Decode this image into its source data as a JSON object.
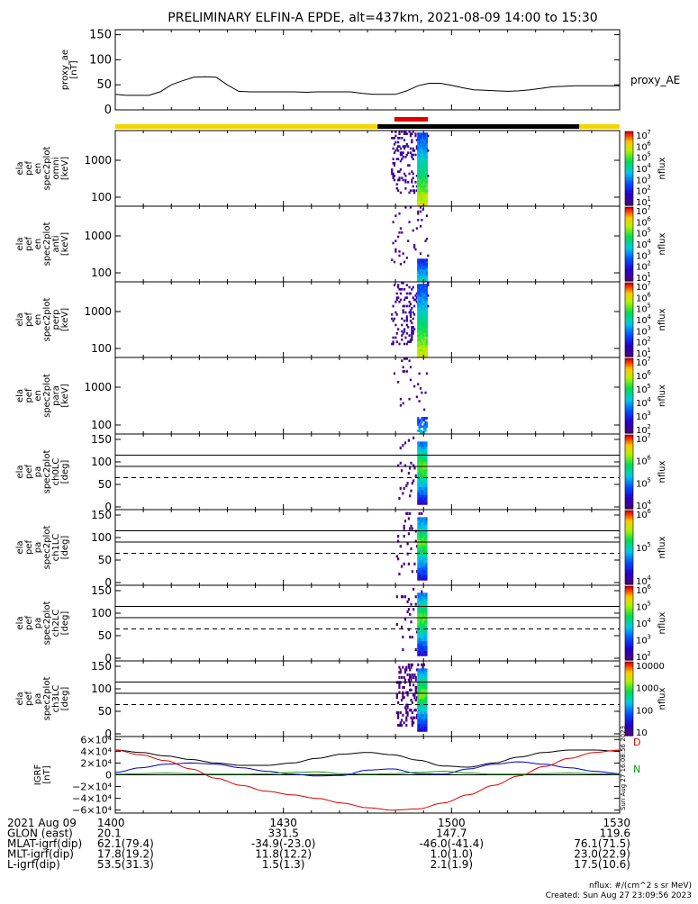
{
  "title": "PRELIMINARY ELFIN-A EPDE, alt=437km, 2021-08-09 14:00 to 15:30",
  "colors": {
    "ae_line": "#000000",
    "sci_bar": "#e00000",
    "zone_bar_yellow": "#f5d400",
    "zone_bar_black": "#000000",
    "igrf_x": "#000000",
    "igrf_y": "#0000c8",
    "igrf_z": "#dd0000",
    "igrf_n": "#00a000"
  },
  "chart_data": [
    {
      "type": "line",
      "id": "proxy_ae",
      "ylabel": [
        "proxy_ae",
        "[nT]"
      ],
      "series": [
        {
          "name": "proxy_AE"
        }
      ],
      "ylim": [
        0,
        160
      ],
      "yticks": [
        "0",
        "50",
        "100",
        "150"
      ],
      "ytick_values": [
        0,
        50,
        100,
        150
      ],
      "x": [
        14.0,
        14.033,
        14.067,
        14.1,
        14.133,
        14.167,
        14.2,
        14.233,
        14.267,
        14.3,
        14.333,
        14.367,
        14.4,
        14.433,
        14.467,
        14.5,
        14.533,
        14.567,
        14.6,
        14.633,
        14.667,
        14.7,
        14.733,
        14.767,
        14.8,
        14.833,
        14.867,
        14.9,
        14.933,
        14.967,
        15.0,
        15.033,
        15.067,
        15.1,
        15.133,
        15.167,
        15.2,
        15.233,
        15.267,
        15.3,
        15.333,
        15.367,
        15.4,
        15.433,
        15.467,
        15.5
      ],
      "values": [
        31,
        29,
        29,
        29,
        36,
        50,
        58,
        65,
        66,
        65,
        50,
        37,
        36,
        36,
        36,
        36,
        36,
        35,
        36,
        36,
        36,
        36,
        33,
        31,
        31,
        31,
        38,
        48,
        53,
        53,
        49,
        44,
        40,
        39,
        38,
        37,
        38,
        40,
        43,
        46,
        47,
        48,
        48,
        48,
        48,
        48
      ]
    },
    {
      "type": "heatmap",
      "id": "spec_omni",
      "ylabel": [
        "ela",
        "pef",
        "en",
        "spec2plot",
        "omni",
        "[keV]"
      ],
      "yticks": [
        "100",
        "1000"
      ],
      "colorbar_label": "nflux",
      "colorbar_ticks": [
        "10",
        "10",
        "10",
        "10",
        "10",
        "10",
        "10"
      ],
      "colorbar_exponents": [
        "1",
        "2",
        "3",
        "4",
        "5",
        "6",
        "7"
      ]
    },
    {
      "type": "heatmap",
      "id": "spec_anti",
      "ylabel": [
        "ela",
        "pef",
        "en",
        "spec2plot",
        "anti",
        "[keV]"
      ],
      "yticks": [
        "100",
        "1000"
      ],
      "colorbar_label": "nflux",
      "colorbar_ticks": [
        "10",
        "10",
        "10",
        "10",
        "10",
        "10",
        "10"
      ],
      "colorbar_exponents": [
        "1",
        "2",
        "3",
        "4",
        "5",
        "6",
        "7"
      ]
    },
    {
      "type": "heatmap",
      "id": "spec_perp",
      "ylabel": [
        "ela",
        "pef",
        "en",
        "spec2plot",
        "perp",
        "[keV]"
      ],
      "yticks": [
        "100",
        "1000"
      ],
      "colorbar_label": "nflux",
      "colorbar_ticks": [
        "10",
        "10",
        "10",
        "10",
        "10",
        "10",
        "10"
      ],
      "colorbar_exponents": [
        "1",
        "2",
        "3",
        "4",
        "5",
        "6",
        "7"
      ]
    },
    {
      "type": "heatmap",
      "id": "spec_para",
      "ylabel": [
        "ela",
        "pef",
        "en",
        "spec2plot",
        "para",
        "[keV]"
      ],
      "yticks": [
        "100",
        "1000"
      ],
      "colorbar_label": "nflux",
      "colorbar_ticks": [
        "10",
        "10",
        "10",
        "10",
        "10",
        "10"
      ],
      "colorbar_exponents": [
        "2",
        "3",
        "4",
        "5",
        "6",
        "7"
      ]
    },
    {
      "type": "heatmap",
      "id": "pa_ch0",
      "ylabel": [
        "ela",
        "pef",
        "pa",
        "spec2plot",
        "ch0LC",
        "[deg]"
      ],
      "yticks": [
        "0",
        "50",
        "100",
        "150"
      ],
      "colorbar_label": "nflux",
      "colorbar_ticks": [
        "10",
        "10",
        "10",
        "10"
      ],
      "colorbar_exponents": [
        "4",
        "5",
        "6",
        "7"
      ]
    },
    {
      "type": "heatmap",
      "id": "pa_ch1",
      "ylabel": [
        "ela",
        "pef",
        "pa",
        "spec2plot",
        "ch1LC",
        "[deg]"
      ],
      "yticks": [
        "0",
        "50",
        "100",
        "150"
      ],
      "colorbar_label": "nflux",
      "colorbar_ticks": [
        "10",
        "10",
        "10"
      ],
      "colorbar_exponents": [
        "4",
        "5",
        "6"
      ]
    },
    {
      "type": "heatmap",
      "id": "pa_ch2",
      "ylabel": [
        "ela",
        "pef",
        "pa",
        "spec2plot",
        "ch2LC",
        "[deg]"
      ],
      "yticks": [
        "0",
        "50",
        "100",
        "150"
      ],
      "colorbar_label": "nflux",
      "colorbar_ticks": [
        "10",
        "10",
        "10",
        "10",
        "10"
      ],
      "colorbar_exponents": [
        "2",
        "3",
        "4",
        "5",
        "6"
      ]
    },
    {
      "type": "heatmap",
      "id": "pa_ch3",
      "ylabel": [
        "ela",
        "pef",
        "pa",
        "spec2plot",
        "ch3LC",
        "[deg]"
      ],
      "yticks": [
        "0",
        "50",
        "100",
        "150"
      ],
      "colorbar_label": "nflux",
      "colorbar_ticks": [
        "10",
        "100",
        "1000",
        "10000"
      ]
    },
    {
      "type": "line",
      "id": "igrf",
      "ylabel": [
        "IGRF",
        "[nT]"
      ],
      "ylim": [
        -65000,
        65000
      ],
      "yticks": [
        "−6×10⁴",
        "−4×10⁴",
        "−2×10⁴",
        "0",
        "2×10⁴",
        "4×10⁴",
        "6×10⁴"
      ],
      "ytick_values": [
        -60000,
        -40000,
        -20000,
        0,
        20000,
        40000,
        60000
      ],
      "x": [
        14.0,
        14.075,
        14.15,
        14.225,
        14.3,
        14.375,
        14.45,
        14.525,
        14.6,
        14.675,
        14.75,
        14.825,
        14.9,
        14.975,
        15.05,
        15.125,
        15.2,
        15.275,
        15.35,
        15.425,
        15.5
      ],
      "series": [
        {
          "values": [
            42000,
            38000,
            32000,
            26000,
            20000,
            16000,
            16000,
            20000,
            28000,
            35000,
            38000,
            34000,
            25000,
            15000,
            13000,
            20000,
            30000,
            38000,
            42000,
            42000,
            40000
          ]
        },
        {
          "values": [
            4000,
            12000,
            18000,
            20000,
            18000,
            12000,
            6000,
            1000,
            -2000,
            -1000,
            8000,
            10000,
            2000,
            1000,
            10000,
            18000,
            22000,
            18000,
            12000,
            6000,
            2000
          ]
        },
        {
          "values": [
            42000,
            34000,
            24000,
            10000,
            -6000,
            -18000,
            -28000,
            -34000,
            -40000,
            -48000,
            -56000,
            -60000,
            -58000,
            -48000,
            -34000,
            -18000,
            -2000,
            14000,
            28000,
            38000,
            42000
          ]
        },
        {
          "values": [
            1000,
            2000,
            3000,
            2000,
            1000,
            1000,
            2000,
            4000,
            5000,
            2000,
            1000,
            2000,
            4000,
            6000,
            3000,
            1000,
            1000,
            2000,
            3000,
            2000,
            1000
          ]
        }
      ]
    }
  ],
  "zone_bar": {
    "segments": [
      {
        "from": 14.0,
        "to": 14.78,
        "color": "yellow"
      },
      {
        "from": 14.78,
        "to": 15.38,
        "color": "black"
      },
      {
        "from": 15.38,
        "to": 15.5,
        "color": "yellow"
      }
    ],
    "science_zone": {
      "from": 14.83,
      "to": 14.93
    }
  },
  "xaxis": {
    "ticks": [
      "1400",
      "1430",
      "1500",
      "1530"
    ],
    "tick_values": [
      14.0,
      14.5,
      15.0,
      15.5
    ]
  },
  "ephemeris": {
    "rows": [
      {
        "label": "2021 Aug 09",
        "values": [
          "1400",
          "1430",
          "1500",
          "1530"
        ]
      },
      {
        "label": "GLON (east)",
        "values": [
          "20.1",
          "331.5",
          "147.7",
          "119.6"
        ]
      },
      {
        "label": "MLAT-igrf(dip)",
        "values": [
          "62.1(79.4)",
          "-34.9(-23.0)",
          "-46.0(-41.4)",
          "76.1(71.5)"
        ]
      },
      {
        "label": "MLT-igrf(dip)",
        "values": [
          "17.8(19.2)",
          "11.8(12.2)",
          "1.0(1.0)",
          "23.0(22.9)"
        ]
      },
      {
        "label": "L-igrf(dip)",
        "values": [
          "53.5(31.3)",
          "1.5(1.3)",
          "2.1(1.9)",
          "17.5(10.6)"
        ]
      }
    ]
  },
  "footer": {
    "units": "nflux: #/(cm^2 s sr MeV)",
    "created": "Created: Sun Aug 27 23:09:56 2023",
    "side_stamp": "Sun Aug 27 16:08:56 2023"
  },
  "igrf_legend": {
    "d": "D",
    "n": "N"
  }
}
